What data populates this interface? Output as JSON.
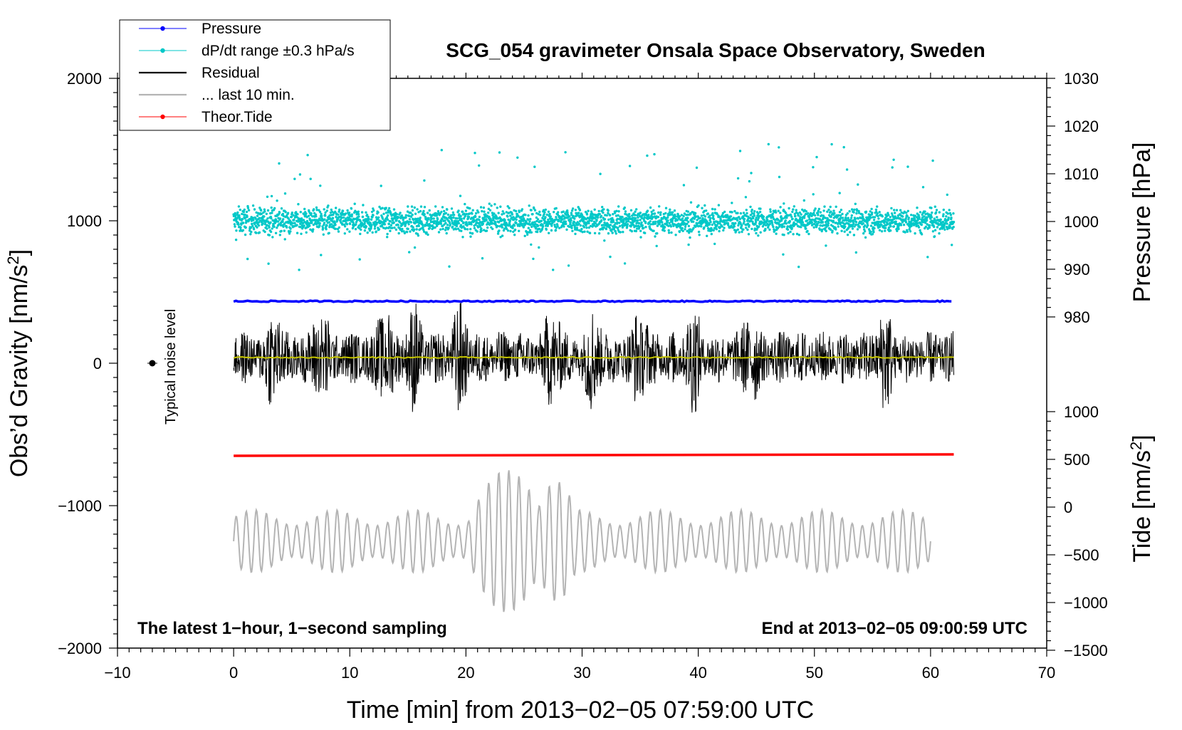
{
  "chart_data": {
    "type": "line",
    "title": "SCG_054 gravimeter Onsala Space Observatory, Sweden",
    "xlabel": "Time [min] from 2013−02−05 07:59:00 UTC",
    "ylabel_left": "Obs’d Gravity [nm/s²]",
    "ylabel_left_parts": {
      "base": "Obs’d Gravity [nm/s",
      "sup": "2",
      "end": "]"
    },
    "ylabel_right_pressure": "Pressure [hPa]",
    "ylabel_right_tide": "Tide [nm/s²]",
    "ylabel_right_tide_parts": {
      "base": "Tide [nm/s",
      "sup": "2",
      "end": "]"
    },
    "xlim": [
      -10,
      70
    ],
    "ylim_left": [
      -2000,
      2000
    ],
    "pressure_axis_range": [
      980,
      1030
    ],
    "tide_axis_range": [
      -1500,
      1000
    ],
    "x_ticks": [
      {
        "value": -10,
        "label": "−10"
      },
      {
        "value": 0,
        "label": "0"
      },
      {
        "value": 10,
        "label": "10"
      },
      {
        "value": 20,
        "label": "20"
      },
      {
        "value": 30,
        "label": "30"
      },
      {
        "value": 40,
        "label": "40"
      },
      {
        "value": 50,
        "label": "50"
      },
      {
        "value": 60,
        "label": "60"
      },
      {
        "value": 70,
        "label": "70"
      }
    ],
    "y_ticks_left": [
      {
        "value": 2000,
        "label": "2000"
      },
      {
        "value": 1000,
        "label": "1000"
      },
      {
        "value": 0,
        "label": "0"
      },
      {
        "value": -1000,
        "label": "−1000"
      },
      {
        "value": -2000,
        "label": "−2000"
      }
    ],
    "y_ticks_pressure": [
      {
        "value": 1030,
        "label": "1030"
      },
      {
        "value": 1020,
        "label": "1020"
      },
      {
        "value": 1010,
        "label": "1010"
      },
      {
        "value": 1000,
        "label": "1000"
      },
      {
        "value": 990,
        "label": "990"
      },
      {
        "value": 980,
        "label": "980"
      }
    ],
    "y_ticks_tide": [
      {
        "value": 1000,
        "label": "1000"
      },
      {
        "value": 500,
        "label": "500"
      },
      {
        "value": 0,
        "label": "0"
      },
      {
        "value": -500,
        "label": "−500"
      },
      {
        "value": -1000,
        "label": "−1000"
      },
      {
        "value": -1500,
        "label": "−1500"
      }
    ],
    "legend": [
      {
        "label": "Pressure",
        "color": "#0000ff",
        "marker": "dot-line"
      },
      {
        "label": "dP/dt range ±0.3 hPa/s",
        "color": "#00c8c8",
        "marker": "dot-line"
      },
      {
        "label": "Residual",
        "color": "#000000",
        "marker": "line"
      },
      {
        "label": "... last 10 min.",
        "color": "#b4b4b4",
        "marker": "line"
      },
      {
        "label": "Theor.Tide",
        "color": "#ff0000",
        "marker": "dot-line"
      }
    ],
    "legend_position": "top-left",
    "annotations": {
      "bottom_left": "The latest 1−hour, 1−second sampling",
      "bottom_right": "End at 2013−02−05 09:00:59 UTC",
      "noise_label": "Typical noise level"
    },
    "series": [
      {
        "name": "Pressure",
        "color": "#0000ff",
        "x_range": [
          0,
          62
        ],
        "level_left_units": 435
      },
      {
        "name": "dP/dt range",
        "color": "#00c8c8",
        "x_range": [
          0,
          62
        ],
        "center_left_units": 1000,
        "spread_left_units": 80
      },
      {
        "name": "Residual",
        "color": "#000000",
        "x_range": [
          0,
          62
        ],
        "center_left_units": 40,
        "amplitude_left_units": 350,
        "burst_minutes": [
          3.5,
          7.5,
          13,
          15.5,
          19.5,
          27.5,
          31,
          35,
          39.5,
          44.5,
          56
        ]
      },
      {
        "name": "Residual mean",
        "color": "#c8c800",
        "x_range": [
          0,
          62
        ],
        "level_left_units": 40
      },
      {
        "name": "Theor.Tide",
        "color": "#ff0000",
        "x_range": [
          0,
          62
        ],
        "start_left_units": -650,
        "end_left_units": -640
      },
      {
        "name": "... last 10 min.",
        "color": "#b4b4b4",
        "x_range": [
          0,
          60
        ],
        "center_left_units": -1250,
        "amplitude_left_units": 220,
        "peak_minute": 23.5,
        "peak_amplitude_left_units": 500
      }
    ],
    "noise_marker": {
      "x": -7,
      "y": 0
    }
  }
}
